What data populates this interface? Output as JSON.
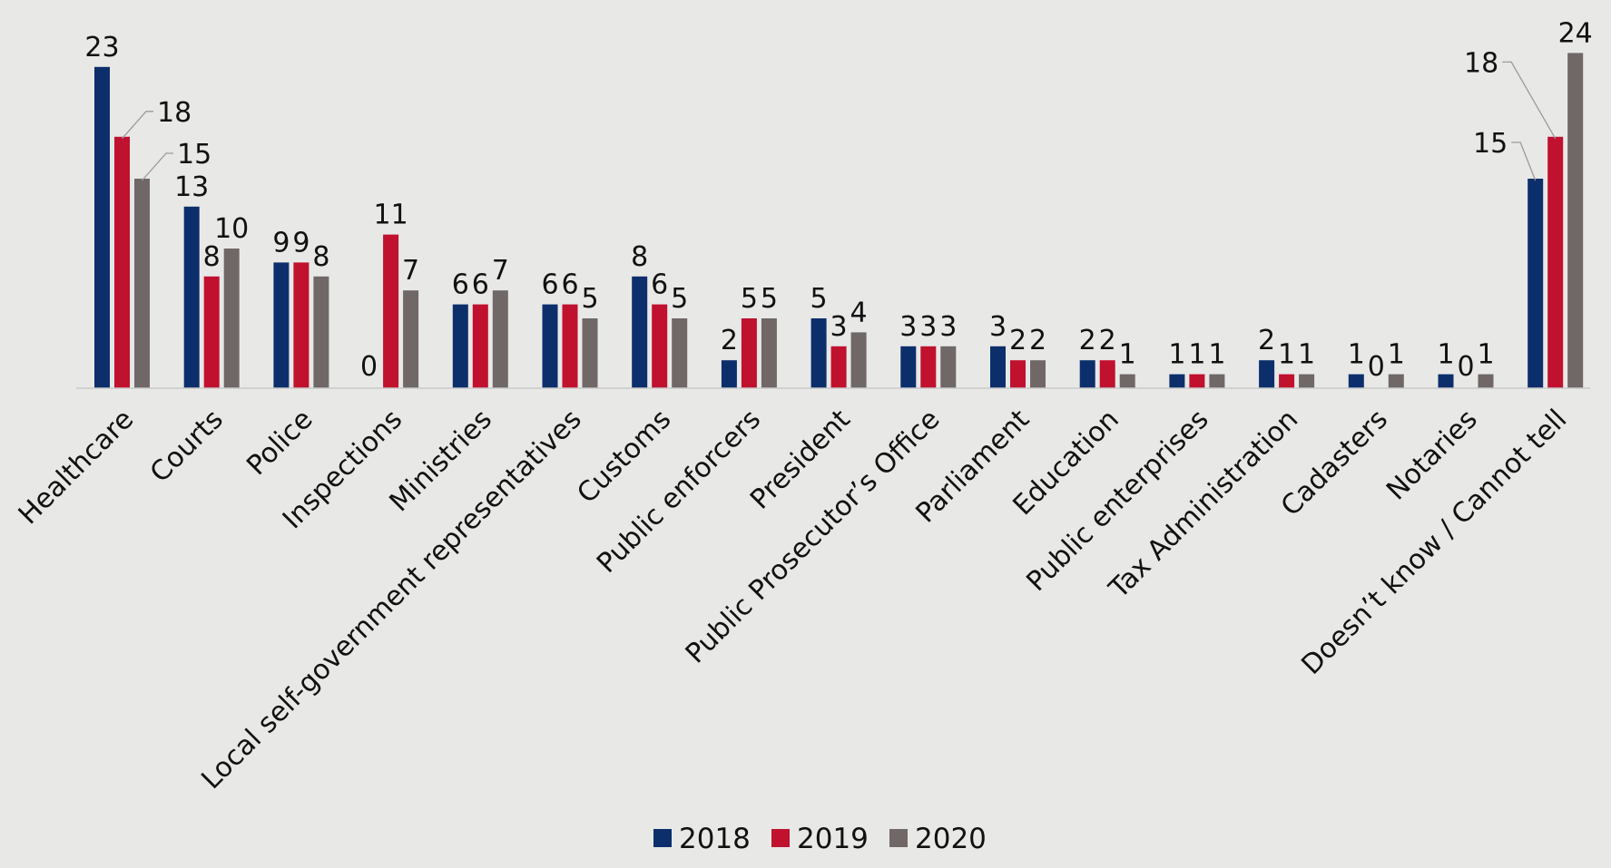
{
  "chart_data": {
    "type": "bar",
    "title": "",
    "xlabel": "",
    "ylabel": "",
    "ylim": [
      0,
      26
    ],
    "grid": false,
    "legend_position": "bottom",
    "categories": [
      "Healthcare",
      "Courts",
      "Police",
      "Inspections",
      "Ministries",
      "Local self-government representatives",
      "Customs",
      "Public enforcers",
      "President",
      "Public Prosecutor’s Office",
      "Parliament",
      "Education",
      "Public enterprises",
      "Tax Administration",
      "Cadasters",
      "Notaries",
      "Doesn’t know / Cannot tell"
    ],
    "series": [
      {
        "name": "2018",
        "color": "#0c2f6b",
        "values": [
          23,
          13,
          9,
          0,
          6,
          6,
          8,
          2,
          5,
          3,
          3,
          2,
          1,
          2,
          1,
          1,
          15
        ],
        "labels": [
          "23",
          "13",
          "9",
          "0",
          "6",
          "6",
          "8",
          "2",
          "5",
          "3",
          "3",
          "2",
          "1",
          "2",
          "1",
          "1",
          "15"
        ]
      },
      {
        "name": "2019",
        "color": "#c0112f",
        "values": [
          18,
          8,
          9,
          11,
          6,
          6,
          6,
          5,
          3,
          3,
          2,
          2,
          1,
          1,
          0,
          0,
          18
        ],
        "labels": [
          "18",
          "8",
          "9",
          "11",
          "6",
          "6",
          "6",
          "5",
          "3",
          "3",
          "2",
          "2",
          "1",
          "1",
          "0",
          "0",
          "18"
        ]
      },
      {
        "name": "2020",
        "color": "#6f6867",
        "values": [
          15,
          10,
          8,
          7,
          7,
          5,
          5,
          5,
          4,
          3,
          2,
          1,
          1,
          1,
          1,
          1,
          24
        ],
        "labels": [
          "15",
          "10",
          "8",
          "7",
          "7",
          "5",
          "5",
          "5",
          "4",
          "3",
          "2",
          "1",
          "1",
          "1",
          "1",
          "1",
          "24"
        ]
      }
    ]
  }
}
